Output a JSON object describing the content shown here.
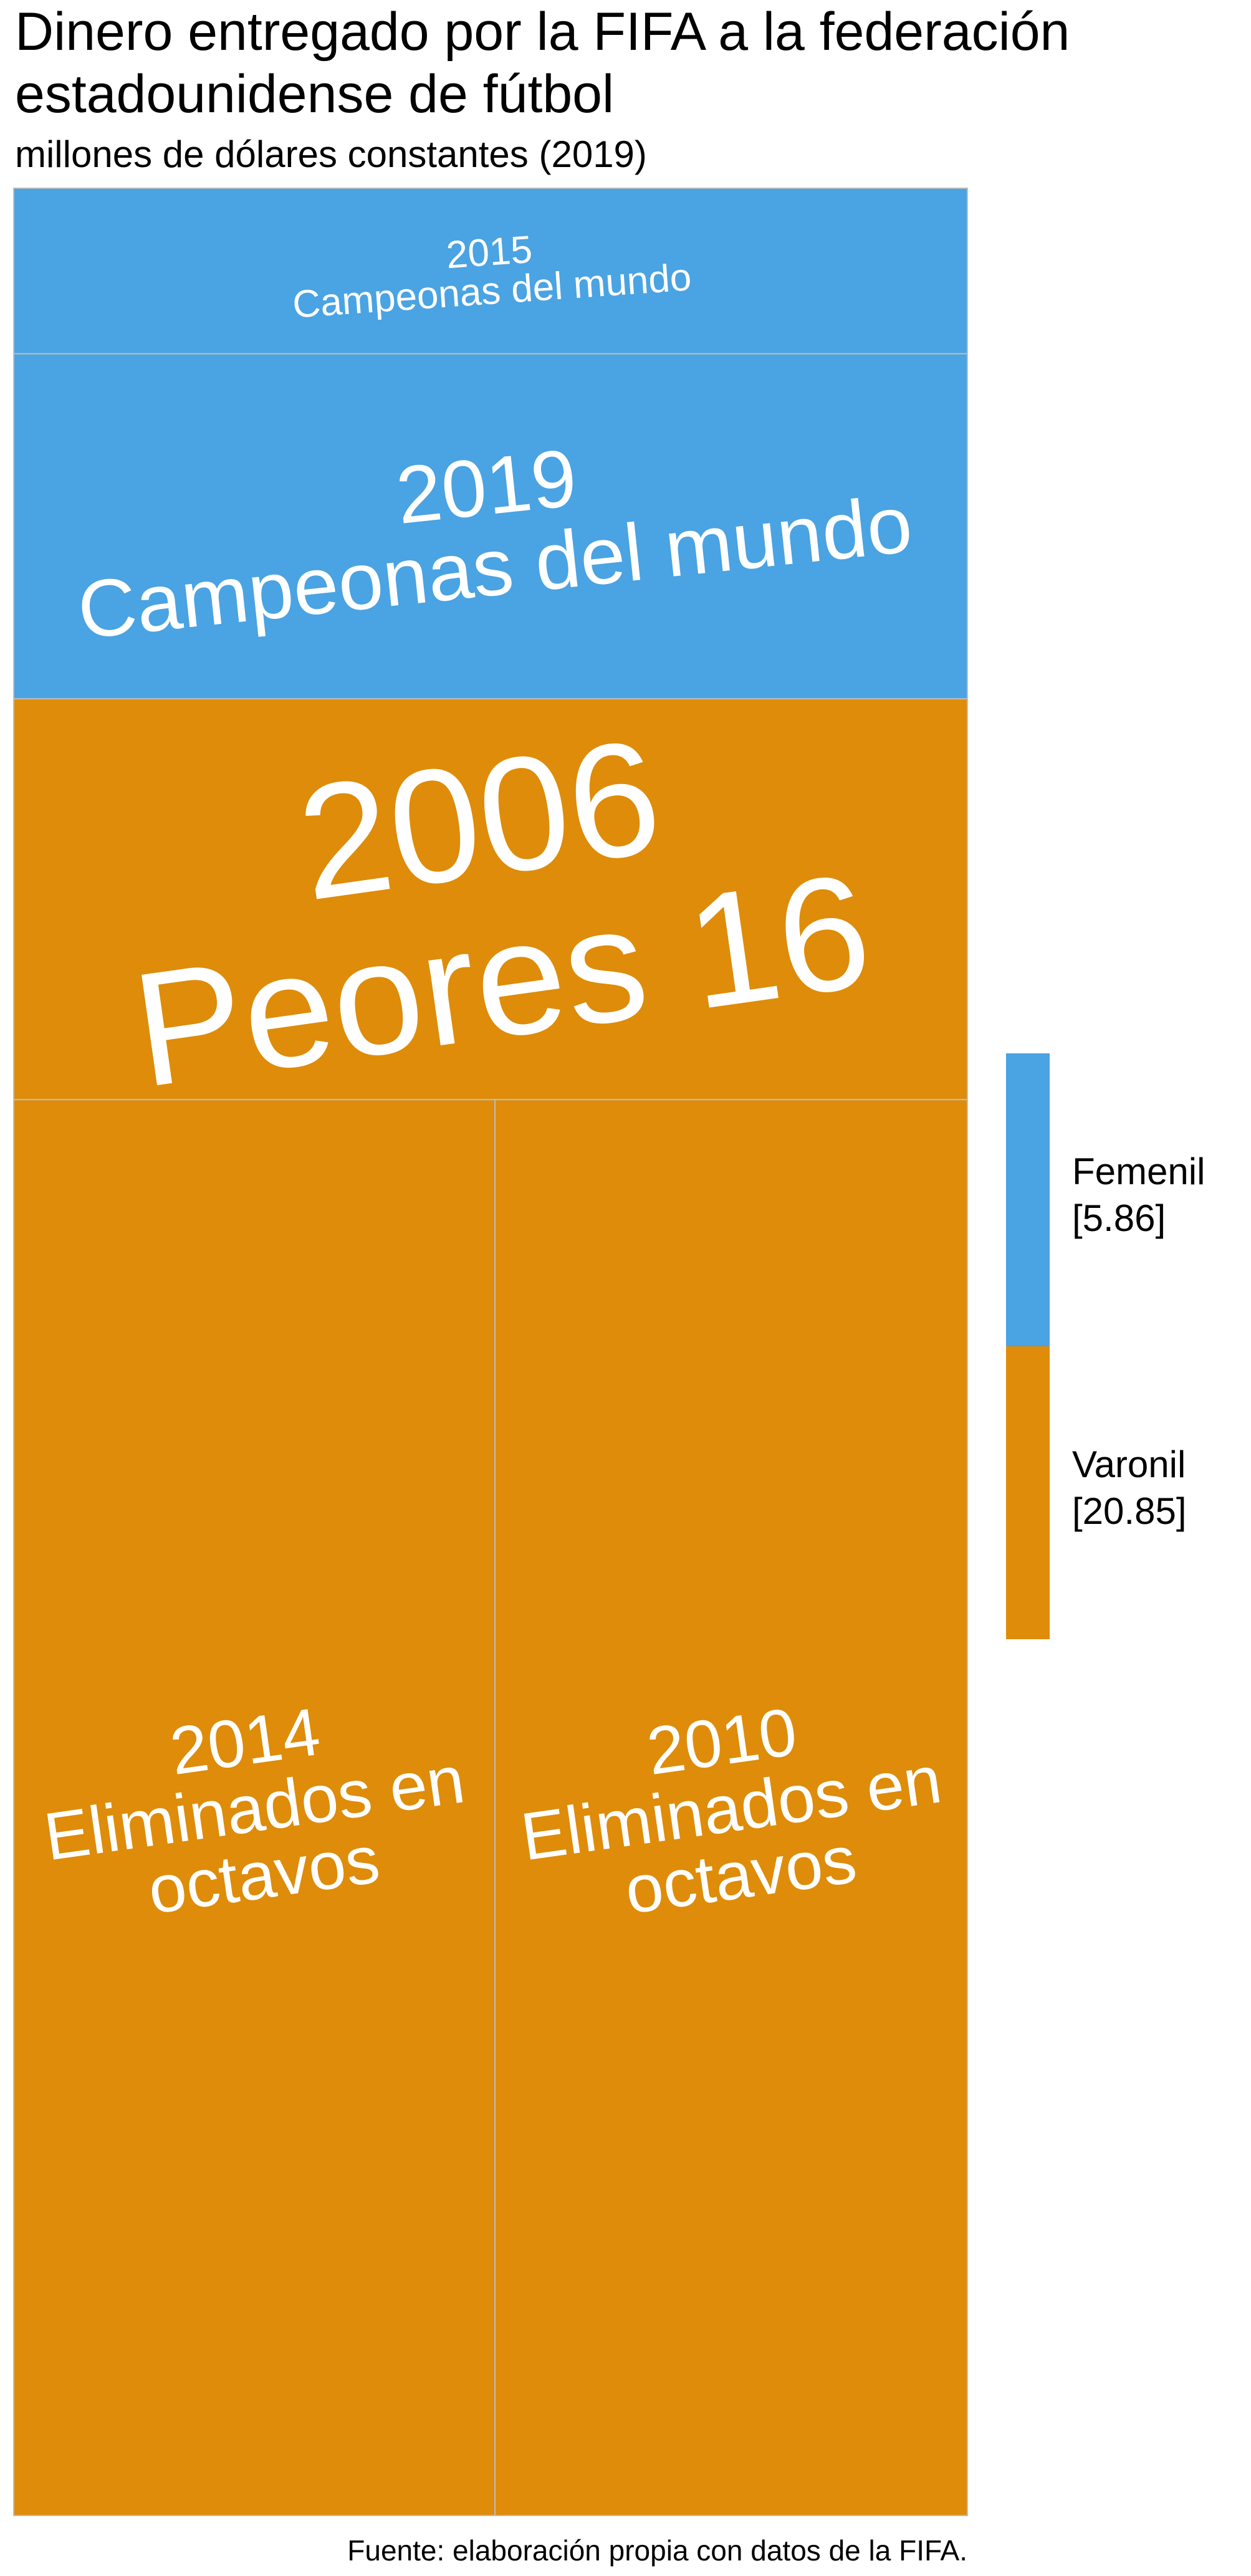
{
  "title_line1": "Dinero entregado por la FIFA a la federación",
  "title_line2": "estadounidense de fútbol",
  "subtitle": "millones de dólares constantes (2019)",
  "caption": "Fuente: elaboración propia con datos de la FIFA.",
  "legend": [
    {
      "name": "Femenil",
      "value_label": "[5.86]",
      "color": "#4AA3E2"
    },
    {
      "name": "Varonil",
      "value_label": "[20.85]",
      "color": "#DE8C09"
    }
  ],
  "chart_data": {
    "type": "treemap",
    "title": "Dinero entregado por la FIFA a la federación estadounidense de fútbol",
    "subtitle": "millones de dólares constantes (2019)",
    "groups": [
      {
        "name": "Femenil",
        "total": 5.86,
        "color": "#4AA3E2"
      },
      {
        "name": "Varonil",
        "total": 20.85,
        "color": "#DE8C09"
      }
    ],
    "tiles": [
      {
        "group": "Femenil",
        "year": "2015",
        "label": "Campeonas del mundo",
        "value": 1.9
      },
      {
        "group": "Femenil",
        "year": "2019",
        "label": "Campeonas del mundo",
        "value": 3.96
      },
      {
        "group": "Varonil",
        "year": "2006",
        "label": "Peores 16",
        "value": 4.6
      },
      {
        "group": "Varonil",
        "year": "2014",
        "label": "Eliminados en octavos",
        "value": 8.2
      },
      {
        "group": "Varonil",
        "year": "2010",
        "label": "Eliminados en octavos",
        "value": 8.05
      }
    ],
    "legend_placement": "right",
    "caption": "Fuente: elaboración propia con datos de la FIFA."
  }
}
